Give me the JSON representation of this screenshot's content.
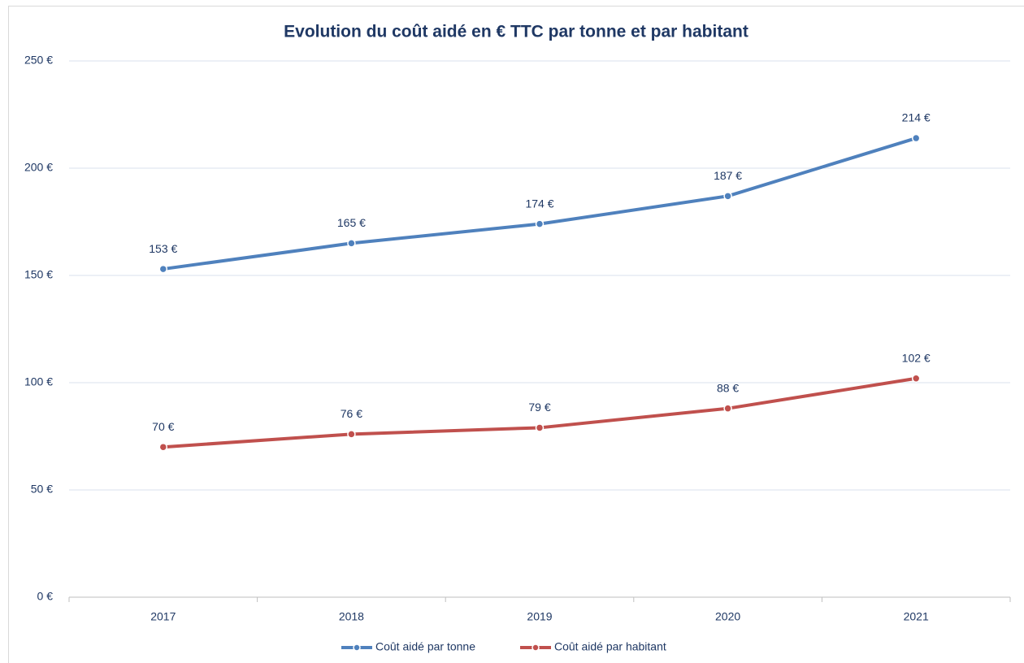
{
  "chart_data": {
    "type": "line",
    "title": "Evolution du coût aidé en € TTC par tonne et par habitant",
    "categories": [
      "2017",
      "2018",
      "2019",
      "2020",
      "2021"
    ],
    "series": [
      {
        "name": "Coût aidé par tonne",
        "color": "#4f81bd",
        "values": [
          153,
          165,
          174,
          187,
          214
        ],
        "value_labels": [
          "153 €",
          "165 €",
          "174 €",
          "187 €",
          "214 €"
        ]
      },
      {
        "name": "Coût aidé par habitant",
        "color": "#c0504d",
        "values": [
          70,
          76,
          79,
          88,
          102
        ],
        "value_labels": [
          "70 €",
          "76 €",
          "79 €",
          "88 €",
          "102 €"
        ]
      }
    ],
    "ylim": [
      0,
      250
    ],
    "yticks": [
      {
        "value": 0,
        "label": "0 €"
      },
      {
        "value": 50,
        "label": "50 €"
      },
      {
        "value": 100,
        "label": "100 €"
      },
      {
        "value": 150,
        "label": "150 €"
      },
      {
        "value": 200,
        "label": "200 €"
      },
      {
        "value": 250,
        "label": "250 €"
      }
    ],
    "grid": true,
    "legend": "bottom"
  }
}
